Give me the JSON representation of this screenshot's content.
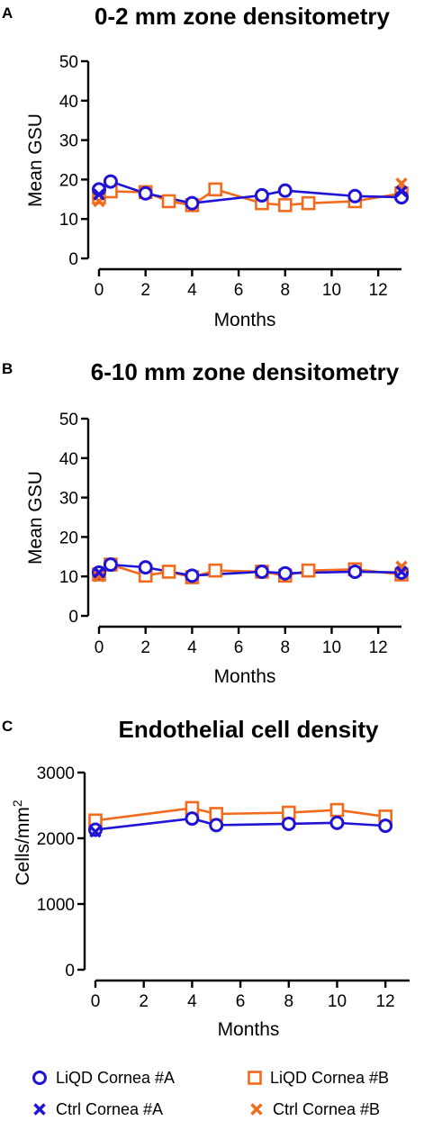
{
  "colors": {
    "liqd_a": "#1f14d6",
    "liqd_b": "#f26b1d",
    "ctrl_a": "#1f14d6",
    "ctrl_b": "#f26b1d"
  },
  "legend": {
    "items": [
      {
        "label": "LiQD Cornea #A",
        "marker": "circle",
        "color": "#1f14d6"
      },
      {
        "label": "LiQD Cornea #B",
        "marker": "square",
        "color": "#f26b1d"
      },
      {
        "label": "Ctrl Cornea #A",
        "marker": "cross",
        "color": "#1f14d6"
      },
      {
        "label": "Ctrl Cornea #B",
        "marker": "cross",
        "color": "#f26b1d"
      }
    ]
  },
  "chart_data": [
    {
      "panel": "A",
      "type": "line",
      "title": "0-2 mm zone densitometry",
      "xlabel": "Months",
      "ylabel": "Mean GSU",
      "xlim": [
        0,
        13
      ],
      "ylim": [
        0,
        50
      ],
      "xticks": [
        0,
        2,
        4,
        6,
        8,
        10,
        12
      ],
      "yticks": [
        0,
        10,
        20,
        30,
        40,
        50
      ],
      "grid": false,
      "series": [
        {
          "name": "LiQD Cornea #A",
          "marker": "circle",
          "color": "#1f14d6",
          "x": [
            0,
            0.5,
            2,
            4,
            7,
            8,
            11,
            13
          ],
          "y": [
            17.5,
            19.5,
            16.5,
            14,
            16,
            17.2,
            15.8,
            15.5
          ]
        },
        {
          "name": "LiQD Cornea #B",
          "marker": "square",
          "color": "#f26b1d",
          "x": [
            0,
            0.5,
            2,
            3,
            4,
            5,
            7,
            8,
            9,
            11,
            13
          ],
          "y": [
            15.5,
            17,
            16.8,
            14.5,
            13.5,
            17.5,
            14,
            13.5,
            14,
            14.5,
            16.5
          ]
        },
        {
          "name": "Ctrl Cornea #A",
          "marker": "cross",
          "color": "#1f14d6",
          "x": [
            0,
            13
          ],
          "y": [
            16.2,
            17
          ]
        },
        {
          "name": "Ctrl Cornea #B",
          "marker": "cross",
          "color": "#f26b1d",
          "x": [
            0,
            13
          ],
          "y": [
            14.5,
            19
          ]
        }
      ]
    },
    {
      "panel": "B",
      "type": "line",
      "title": "6-10 mm zone densitometry",
      "xlabel": "Months",
      "ylabel": "Mean GSU",
      "xlim": [
        0,
        13
      ],
      "ylim": [
        0,
        50
      ],
      "xticks": [
        0,
        2,
        4,
        6,
        8,
        10,
        12
      ],
      "yticks": [
        0,
        10,
        20,
        30,
        40,
        50
      ],
      "grid": false,
      "series": [
        {
          "name": "LiQD Cornea #A",
          "marker": "circle",
          "color": "#1f14d6",
          "x": [
            0,
            0.5,
            2,
            4,
            7,
            8,
            11,
            13
          ],
          "y": [
            11,
            13,
            12.3,
            10.2,
            11.2,
            10.8,
            11.2,
            11
          ]
        },
        {
          "name": "LiQD Cornea #B",
          "marker": "square",
          "color": "#f26b1d",
          "x": [
            0,
            0.5,
            2,
            3,
            4,
            5,
            7,
            8,
            9,
            11,
            13
          ],
          "y": [
            10.5,
            13,
            10.2,
            11.2,
            9.8,
            11.5,
            11.2,
            10.2,
            11.5,
            11.8,
            10.5
          ]
        },
        {
          "name": "Ctrl Cornea #A",
          "marker": "cross",
          "color": "#1f14d6",
          "x": [
            0,
            13
          ],
          "y": [
            11,
            11.2
          ]
        },
        {
          "name": "Ctrl Cornea #B",
          "marker": "cross",
          "color": "#f26b1d",
          "x": [
            0,
            13
          ],
          "y": [
            10,
            12.5
          ]
        }
      ]
    },
    {
      "panel": "C",
      "type": "line",
      "title": "Endothelial cell density",
      "xlabel": "Months",
      "ylabel": "Cells/mm",
      "ylabel_sup": "2",
      "xlim": [
        0,
        13
      ],
      "ylim": [
        0,
        3000
      ],
      "xticks": [
        0,
        2,
        4,
        6,
        8,
        10,
        12
      ],
      "yticks": [
        0,
        1000,
        2000,
        3000
      ],
      "grid": false,
      "series": [
        {
          "name": "LiQD Cornea #A",
          "marker": "circle",
          "color": "#1f14d6",
          "x": [
            0,
            4,
            5,
            8,
            10,
            12
          ],
          "y": [
            2130,
            2300,
            2200,
            2220,
            2235,
            2190
          ]
        },
        {
          "name": "LiQD Cornea #B",
          "marker": "square",
          "color": "#f26b1d",
          "x": [
            0,
            4,
            5,
            8,
            10,
            12
          ],
          "y": [
            2270,
            2460,
            2370,
            2390,
            2430,
            2330
          ]
        },
        {
          "name": "Ctrl Cornea #A",
          "marker": "cross",
          "color": "#1f14d6",
          "x": [
            0
          ],
          "y": [
            2100
          ]
        },
        {
          "name": "Ctrl Cornea #B",
          "marker": "cross",
          "color": "#f26b1d",
          "x": [],
          "y": []
        }
      ]
    }
  ]
}
